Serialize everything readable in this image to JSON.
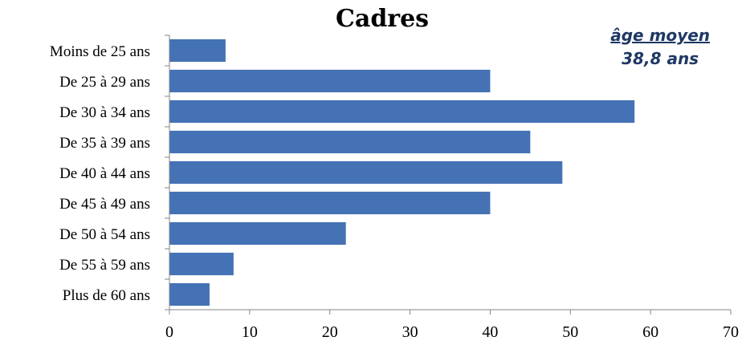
{
  "chart_data": {
    "type": "bar",
    "orientation": "horizontal",
    "title": "Cadres",
    "categories": [
      "Moins de 25 ans",
      "De 25 à 29 ans",
      "De 30 à 34 ans",
      "De 35 à 39 ans",
      "De 40 à 44 ans",
      "De 45 à 49 ans",
      "De 50 à 54 ans",
      "De 55 à 59 ans",
      "Plus de 60 ans"
    ],
    "values": [
      7,
      40,
      58,
      45,
      49,
      40,
      22,
      8,
      5
    ],
    "xlim": [
      0,
      70
    ],
    "x_ticks": [
      0,
      10,
      20,
      30,
      40,
      50,
      60,
      70
    ],
    "xlabel": "",
    "ylabel": "",
    "grid": false,
    "bar_color": "#4472b4",
    "annotation": {
      "line1": "âge moyen",
      "line2": "38,8 ans",
      "color": "#1f3864"
    }
  }
}
